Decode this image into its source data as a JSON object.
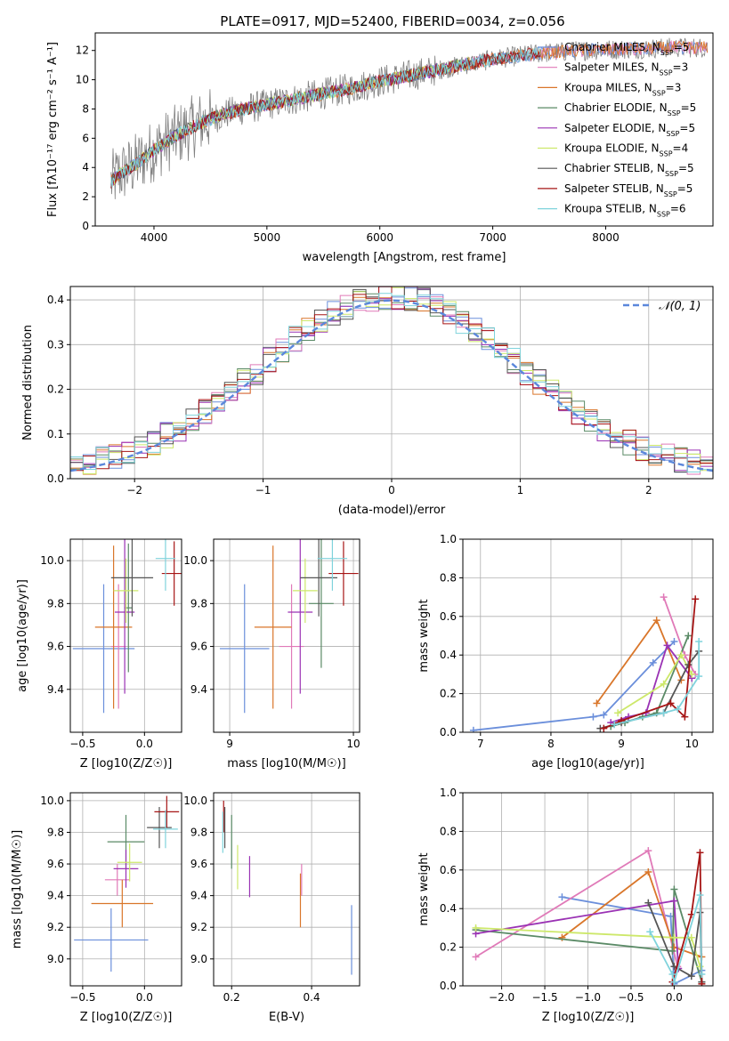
{
  "figure": {
    "title": "PLATE=0917, MJD=52400, FIBERID=0034, z=0.056",
    "colors": {
      "Chabrier MILES": "#6b8fdb",
      "Salpeter MILES": "#e07ab8",
      "Kroupa MILES": "#d9762a",
      "Chabrier ELODIE": "#5a8a66",
      "Salpeter ELODIE": "#9a32b4",
      "Kroupa ELODIE": "#cde86a",
      "Chabrier STELIB": "#555555",
      "Salpeter STELIB": "#a61515",
      "Kroupa STELIB": "#7fd3dc",
      "data": "#808080"
    }
  },
  "chart_data": [
    {
      "type": "line",
      "id": "spectrum",
      "xlabel": "wavelength [Angstrom, rest frame]",
      "ylabel": "Flux [fλ10⁻¹⁷ erg cm⁻² s⁻¹ A⁻¹]",
      "xlim": [
        3480,
        8950
      ],
      "ylim": [
        0,
        13.2
      ],
      "xticks": [
        4000,
        5000,
        6000,
        7000,
        8000
      ],
      "yticks": [
        0,
        2,
        4,
        6,
        8,
        10,
        12
      ],
      "legend": [
        "Chabrier MILES, N_SSP=5",
        "Salpeter MILES, N_SSP=3",
        "Kroupa MILES, N_SSP=3",
        "Chabrier ELODIE, N_SSP=5",
        "Salpeter ELODIE, N_SSP=5",
        "Kroupa ELODIE, N_SSP=4",
        "Chabrier STELIB, N_SSP=5",
        "Salpeter STELIB, N_SSP=5",
        "Kroupa STELIB, N_SSP=6"
      ],
      "legend_position": "upper right",
      "continuum": {
        "x": [
          3620,
          3700,
          3800,
          3900,
          4000,
          4100,
          4200,
          4400,
          4600,
          4800,
          5000,
          5200,
          5400,
          5600,
          5800,
          6000,
          6200,
          6400,
          6600,
          6800,
          7000,
          7200,
          7400,
          7600,
          7800,
          8000,
          8200,
          8400,
          8600,
          8800
        ],
        "y": [
          3.0,
          3.6,
          4.0,
          4.6,
          5.2,
          5.7,
          6.2,
          7.0,
          7.6,
          8.0,
          8.3,
          8.6,
          8.9,
          9.2,
          9.5,
          9.9,
          10.2,
          10.5,
          10.8,
          11.1,
          11.4,
          11.6,
          11.8,
          11.9,
          12.0,
          12.05,
          12.1,
          12.15,
          12.2,
          12.2
        ]
      }
    },
    {
      "type": "bar",
      "id": "residual_histogram",
      "xlabel": "(data-model)/error",
      "ylabel": "Normed distribution",
      "xlim": [
        -2.5,
        2.5
      ],
      "ylim": [
        0,
        0.43
      ],
      "xticks": [
        -2,
        -1,
        0,
        1,
        2
      ],
      "yticks": [
        0.0,
        0.1,
        0.2,
        0.3,
        0.4
      ],
      "reference_curve": "N(0,1)",
      "legend": [
        "𝒩(0, 1)"
      ],
      "legend_position": "upper right",
      "bin_width": 0.1
    },
    {
      "type": "scatter",
      "id": "age_vs_Z",
      "xlabel": "Z [log10(Z/Z☉)]",
      "ylabel": "age  [log10(age/yr)]",
      "xlim": [
        -0.6,
        0.3
      ],
      "ylim": [
        9.2,
        10.1
      ],
      "xticks": [
        -0.5,
        0.0
      ],
      "yticks": [
        9.4,
        9.6,
        9.8,
        10.0
      ],
      "points": [
        {
          "series": "Chabrier MILES",
          "x": -0.33,
          "y": 9.59,
          "xerr": 0.25,
          "yerr": 0.3
        },
        {
          "series": "Salpeter MILES",
          "x": -0.21,
          "y": 9.6,
          "xerr": 0.06,
          "yerr": 0.29
        },
        {
          "series": "Kroupa MILES",
          "x": -0.25,
          "y": 9.69,
          "xerr": 0.15,
          "yerr": 0.38
        },
        {
          "series": "Chabrier ELODIE",
          "x": -0.13,
          "y": 9.78,
          "xerr": 0.03,
          "yerr": 0.3
        },
        {
          "series": "Salpeter ELODIE",
          "x": -0.16,
          "y": 9.76,
          "xerr": 0.08,
          "yerr": 0.38
        },
        {
          "series": "Kroupa ELODIE",
          "x": -0.15,
          "y": 9.86,
          "xerr": 0.1,
          "yerr": 0.15
        },
        {
          "series": "Chabrier STELIB",
          "x": -0.1,
          "y": 9.92,
          "xerr": 0.17,
          "yerr": 0.18
        },
        {
          "series": "Salpeter STELIB",
          "x": 0.24,
          "y": 9.94,
          "xerr": 0.1,
          "yerr": 0.15
        },
        {
          "series": "Kroupa STELIB",
          "x": 0.17,
          "y": 10.01,
          "xerr": 0.08,
          "yerr": 0.15
        }
      ]
    },
    {
      "type": "scatter",
      "id": "age_vs_mass",
      "xlabel": "mass [log10(M/M☉)]",
      "ylabel": "",
      "xlim": [
        8.87,
        10.05
      ],
      "ylim": [
        9.2,
        10.1
      ],
      "xticks": [
        9,
        10
      ],
      "yticks": [
        9.4,
        9.6,
        9.8,
        10.0
      ],
      "points": [
        {
          "series": "Chabrier MILES",
          "x": 9.12,
          "y": 9.59,
          "xerr": 0.2,
          "yerr": 0.3
        },
        {
          "series": "Salpeter MILES",
          "x": 9.5,
          "y": 9.6,
          "xerr": 0.1,
          "yerr": 0.29
        },
        {
          "series": "Kroupa MILES",
          "x": 9.35,
          "y": 9.69,
          "xerr": 0.15,
          "yerr": 0.38
        },
        {
          "series": "Chabrier ELODIE",
          "x": 9.74,
          "y": 9.8,
          "xerr": 0.1,
          "yerr": 0.3
        },
        {
          "series": "Salpeter ELODIE",
          "x": 9.57,
          "y": 9.76,
          "xerr": 0.1,
          "yerr": 0.38
        },
        {
          "series": "Kroupa ELODIE",
          "x": 9.61,
          "y": 9.86,
          "xerr": 0.1,
          "yerr": 0.15
        },
        {
          "series": "Chabrier STELIB",
          "x": 9.72,
          "y": 9.92,
          "xerr": 0.15,
          "yerr": 0.18
        },
        {
          "series": "Salpeter STELIB",
          "x": 9.92,
          "y": 9.94,
          "xerr": 0.12,
          "yerr": 0.15
        },
        {
          "series": "Kroupa STELIB",
          "x": 9.83,
          "y": 10.01,
          "xerr": 0.12,
          "yerr": 0.15
        }
      ]
    },
    {
      "type": "line",
      "id": "mass_weight_vs_age",
      "xlabel": "age  [log10(age/yr)]",
      "ylabel": "mass weight",
      "xlim": [
        6.75,
        10.3
      ],
      "ylim": [
        0.0,
        1.0
      ],
      "xticks": [
        7,
        8,
        9,
        10
      ],
      "yticks": [
        0.0,
        0.2,
        0.4,
        0.6,
        0.8,
        1.0
      ],
      "series": [
        {
          "name": "Chabrier MILES",
          "x": [
            6.9,
            8.6,
            8.75,
            9.45,
            9.75
          ],
          "y": [
            0.01,
            0.08,
            0.09,
            0.36,
            0.47
          ]
        },
        {
          "name": "Salpeter MILES",
          "x": [
            9.6,
            9.9,
            10.05
          ],
          "y": [
            0.7,
            0.4,
            0.3
          ]
        },
        {
          "name": "Kroupa MILES",
          "x": [
            8.65,
            9.5,
            9.85
          ],
          "y": [
            0.15,
            0.58,
            0.27
          ]
        },
        {
          "name": "Chabrier ELODIE",
          "x": [
            8.85,
            9.05,
            9.3,
            9.5,
            9.95
          ],
          "y": [
            0.03,
            0.05,
            0.08,
            0.1,
            0.5
          ]
        },
        {
          "name": "Salpeter ELODIE",
          "x": [
            8.85,
            9.1,
            9.35,
            9.65,
            10.0
          ],
          "y": [
            0.05,
            0.08,
            0.1,
            0.45,
            0.28
          ]
        },
        {
          "name": "Kroupa ELODIE",
          "x": [
            8.95,
            9.6,
            9.85,
            10.0
          ],
          "y": [
            0.1,
            0.25,
            0.4,
            0.3
          ]
        },
        {
          "name": "Chabrier STELIB",
          "x": [
            8.7,
            9.0,
            9.6,
            9.95,
            10.1
          ],
          "y": [
            0.02,
            0.05,
            0.1,
            0.35,
            0.42
          ]
        },
        {
          "name": "Salpeter STELIB",
          "x": [
            8.75,
            9.0,
            9.7,
            9.9,
            10.05
          ],
          "y": [
            0.02,
            0.06,
            0.15,
            0.08,
            0.69
          ]
        },
        {
          "name": "Kroupa STELIB",
          "x": [
            8.9,
            9.6,
            9.8,
            10.1,
            10.1
          ],
          "y": [
            0.04,
            0.1,
            0.12,
            0.29,
            0.47
          ]
        }
      ]
    },
    {
      "type": "scatter",
      "id": "mass_vs_Z",
      "xlabel": "Z [log10(Z/Z☉)]",
      "ylabel": "mass [log10(M/M☉)]",
      "xlim": [
        -0.6,
        0.3
      ],
      "ylim": [
        8.83,
        10.05
      ],
      "xticks": [
        -0.5,
        0.0
      ],
      "yticks": [
        9.0,
        9.2,
        9.4,
        9.6,
        9.8,
        10.0
      ],
      "points": [
        {
          "series": "Chabrier MILES",
          "x": -0.27,
          "y": 9.12,
          "xerr": 0.3,
          "yerr": 0.2
        },
        {
          "series": "Salpeter MILES",
          "x": -0.22,
          "y": 9.5,
          "xerr": 0.1,
          "yerr": 0.1
        },
        {
          "series": "Kroupa MILES",
          "x": -0.18,
          "y": 9.35,
          "xerr": 0.25,
          "yerr": 0.15
        },
        {
          "series": "Chabrier ELODIE",
          "x": -0.15,
          "y": 9.74,
          "xerr": 0.15,
          "yerr": 0.17
        },
        {
          "series": "Salpeter ELODIE",
          "x": -0.15,
          "y": 9.57,
          "xerr": 0.1,
          "yerr": 0.12
        },
        {
          "series": "Kroupa ELODIE",
          "x": -0.12,
          "y": 9.61,
          "xerr": 0.1,
          "yerr": 0.12
        },
        {
          "series": "Chabrier STELIB",
          "x": 0.12,
          "y": 9.83,
          "xerr": 0.1,
          "yerr": 0.13
        },
        {
          "series": "Salpeter STELIB",
          "x": 0.18,
          "y": 9.93,
          "xerr": 0.1,
          "yerr": 0.1
        },
        {
          "series": "Kroupa STELIB",
          "x": 0.17,
          "y": 9.82,
          "xerr": 0.1,
          "yerr": 0.12
        }
      ]
    },
    {
      "type": "scatter",
      "id": "mass_vs_EBV",
      "xlabel": "E(B-V)",
      "ylabel": "",
      "xlim": [
        0.155,
        0.52
      ],
      "ylim": [
        8.83,
        10.05
      ],
      "xticks": [
        0.2,
        0.4
      ],
      "yticks": [
        9.0,
        9.2,
        9.4,
        9.6,
        9.8,
        10.0
      ],
      "points": [
        {
          "series": "Chabrier MILES",
          "x": 0.5,
          "y": 9.12,
          "xerr": 0.0,
          "yerr": 0.22
        },
        {
          "series": "Salpeter MILES",
          "x": 0.375,
          "y": 9.5,
          "xerr": 0.0,
          "yerr": 0.1
        },
        {
          "series": "Kroupa MILES",
          "x": 0.372,
          "y": 9.37,
          "xerr": 0.0,
          "yerr": 0.17
        },
        {
          "series": "Chabrier ELODIE",
          "x": 0.2,
          "y": 9.74,
          "xerr": 0.0,
          "yerr": 0.17
        },
        {
          "series": "Salpeter ELODIE",
          "x": 0.245,
          "y": 9.52,
          "xerr": 0.0,
          "yerr": 0.13
        },
        {
          "series": "Kroupa ELODIE",
          "x": 0.215,
          "y": 9.58,
          "xerr": 0.0,
          "yerr": 0.14
        },
        {
          "series": "Chabrier STELIB",
          "x": 0.183,
          "y": 9.83,
          "xerr": 0.0,
          "yerr": 0.13
        },
        {
          "series": "Salpeter STELIB",
          "x": 0.18,
          "y": 9.9,
          "xerr": 0.0,
          "yerr": 0.1
        },
        {
          "series": "Kroupa STELIB",
          "x": 0.178,
          "y": 9.8,
          "xerr": 0.0,
          "yerr": 0.13
        }
      ]
    },
    {
      "type": "line",
      "id": "mass_weight_vs_Z",
      "xlabel": "Z [log10(Z/Z☉)]",
      "ylabel": "mass weight",
      "xlim": [
        -2.45,
        0.45
      ],
      "ylim": [
        0.0,
        1.0
      ],
      "xticks": [
        -2.0,
        -1.5,
        -1.0,
        -0.5,
        0.0
      ],
      "yticks": [
        0.0,
        0.2,
        0.4,
        0.6,
        0.8,
        1.0
      ],
      "series": [
        {
          "name": "Chabrier MILES",
          "x": [
            -1.3,
            -0.04,
            0.0,
            0.32
          ],
          "y": [
            0.46,
            0.36,
            0.01,
            0.08
          ]
        },
        {
          "name": "Salpeter MILES",
          "x": [
            -2.3,
            -0.3,
            0.04
          ],
          "y": [
            0.15,
            0.7,
            0.1
          ]
        },
        {
          "name": "Kroupa MILES",
          "x": [
            -1.3,
            -0.3,
            0.0,
            0.32
          ],
          "y": [
            0.25,
            0.59,
            0.2,
            0.15
          ]
        },
        {
          "name": "Chabrier ELODIE",
          "x": [
            -2.3,
            -0.02,
            0.0,
            0.32
          ],
          "y": [
            0.29,
            0.18,
            0.5,
            0.02
          ]
        },
        {
          "name": "Salpeter ELODIE",
          "x": [
            -2.3,
            0.0,
            0.05
          ],
          "y": [
            0.27,
            0.44,
            0.09
          ]
        },
        {
          "name": "Kroupa ELODIE",
          "x": [
            -2.3,
            0.0,
            0.2,
            0.3
          ],
          "y": [
            0.3,
            0.25,
            0.25,
            0.1
          ]
        },
        {
          "name": "Chabrier STELIB",
          "x": [
            -0.3,
            0.0,
            0.2,
            0.3,
            0.32
          ],
          "y": [
            0.43,
            0.1,
            0.05,
            0.38,
            0.02
          ]
        },
        {
          "name": "Salpeter STELIB",
          "x": [
            -0.02,
            0.2,
            0.3,
            0.32
          ],
          "y": [
            0.02,
            0.37,
            0.69,
            0.01
          ]
        },
        {
          "name": "Kroupa STELIB",
          "x": [
            -0.28,
            -0.02,
            0.0,
            0.3,
            0.32
          ],
          "y": [
            0.28,
            0.06,
            0.02,
            0.47,
            0.06
          ]
        }
      ]
    }
  ]
}
